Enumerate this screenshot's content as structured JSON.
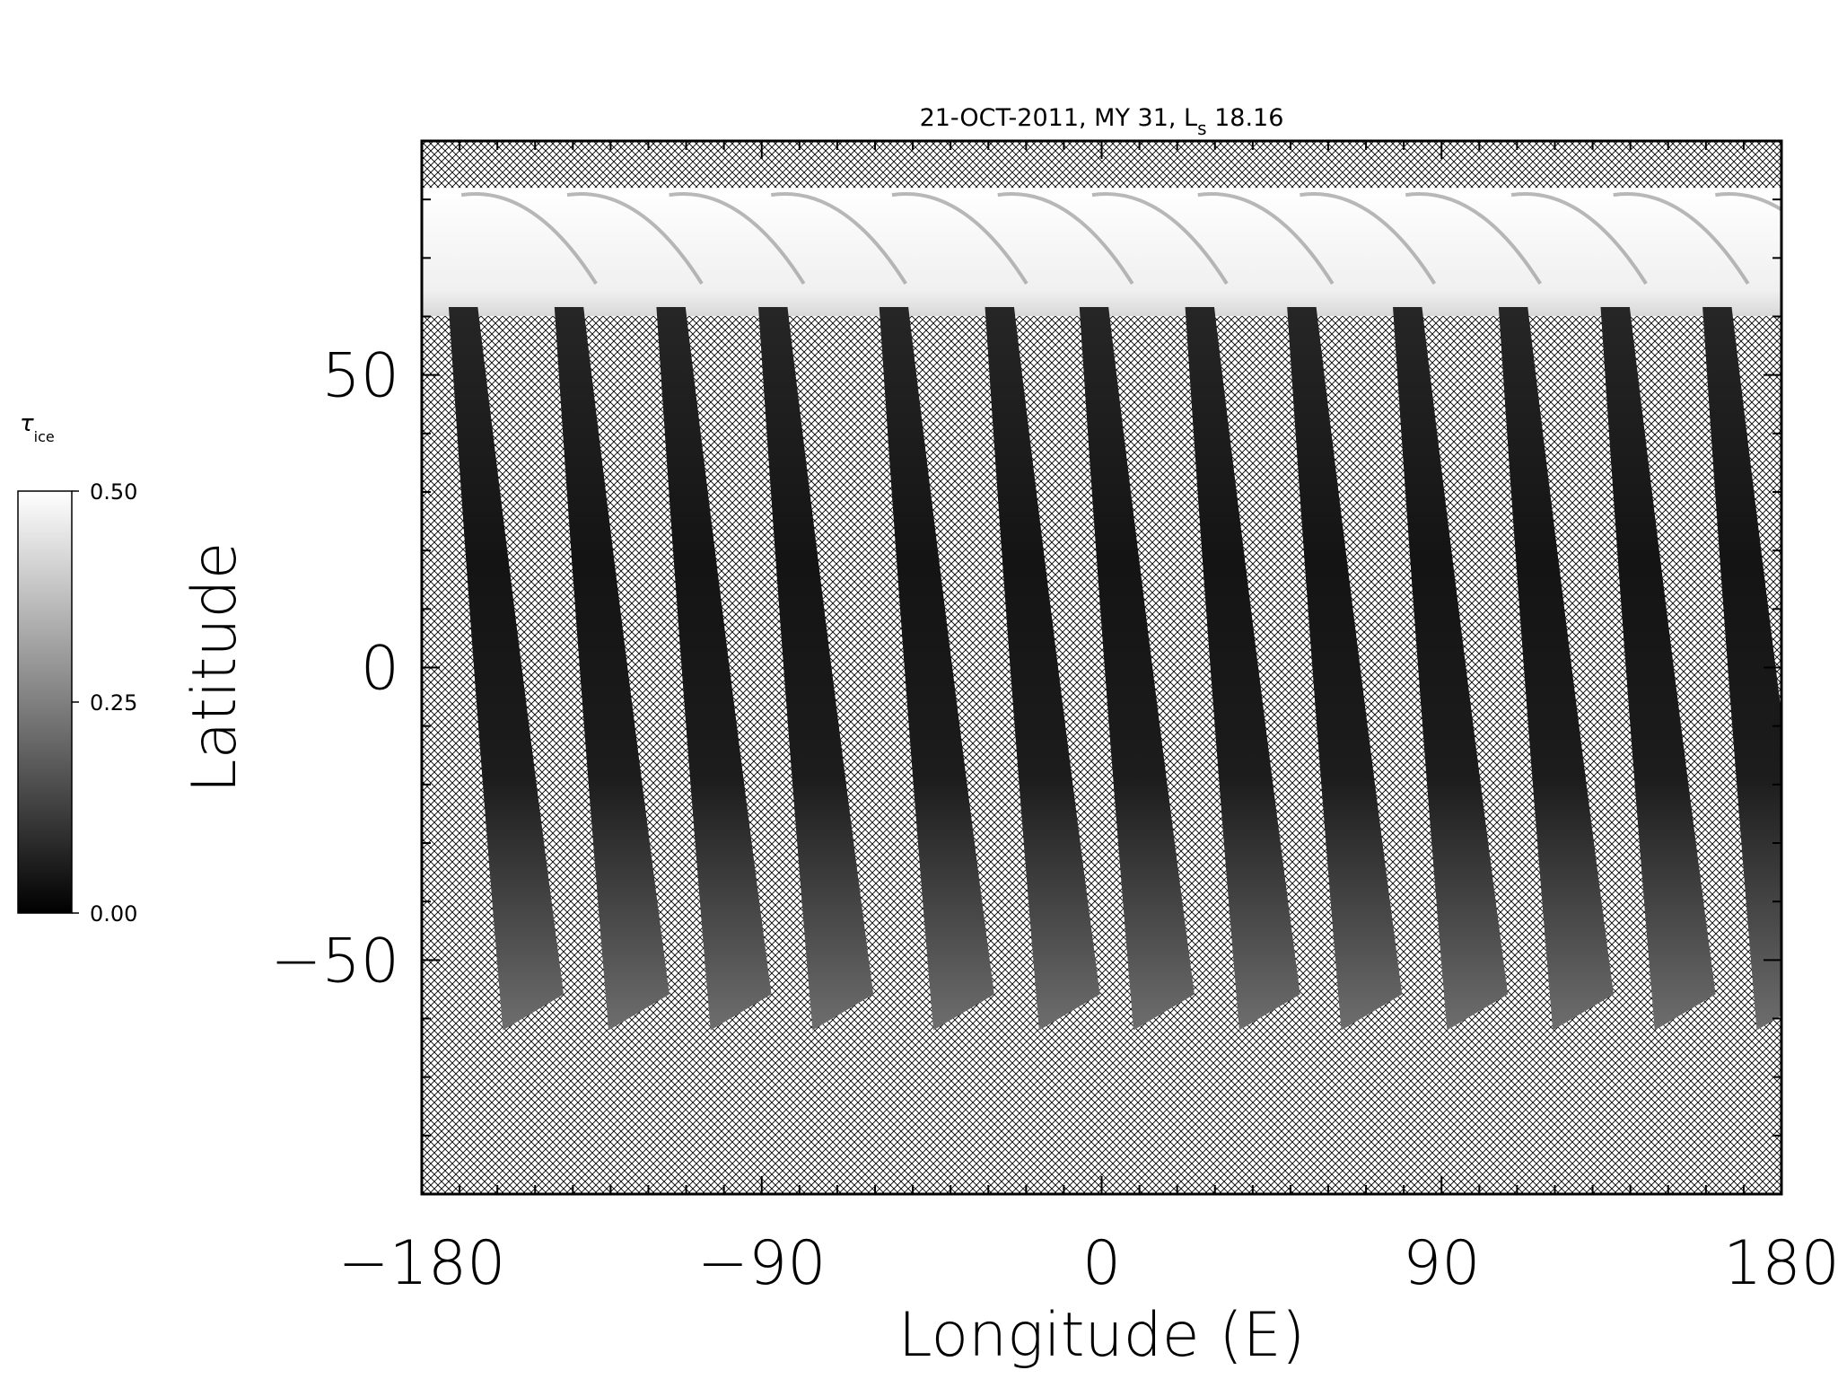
{
  "chart_data": {
    "type": "heatmap",
    "title": "21-OCT-2011, MY 31,  L",
    "title_subscript": "s",
    "title_suffix": " 18.16",
    "xlabel": "Longitude (E)",
    "ylabel": "Latitude",
    "xlim": [
      -180,
      180
    ],
    "ylim": [
      -90,
      90
    ],
    "x_ticks": [
      -180,
      -90,
      0,
      90,
      180
    ],
    "x_tick_labels": [
      "−180",
      "−90",
      "0",
      "90",
      "180"
    ],
    "y_ticks": [
      50,
      0,
      -50
    ],
    "y_tick_labels": [
      "50",
      "0",
      "−50"
    ],
    "colorbar": {
      "title": "τ",
      "title_subscript": "ice",
      "min": 0.0,
      "max": 0.5,
      "ticks": [
        0.0,
        0.25,
        0.5
      ],
      "tick_labels": [
        "0.00",
        "0.25",
        "0.50"
      ],
      "colormap": "grayscale"
    },
    "coverage_lat_range": [
      -62,
      82
    ],
    "polar_cap_ice_lat_start": 61,
    "swaths_center_longitude_at_equator": [
      -160,
      -132,
      -105,
      -78,
      -46,
      -18,
      7,
      35,
      62,
      90,
      118,
      145,
      172
    ],
    "swath_width_deg": 14,
    "no_data_pattern": "crosshatch"
  }
}
